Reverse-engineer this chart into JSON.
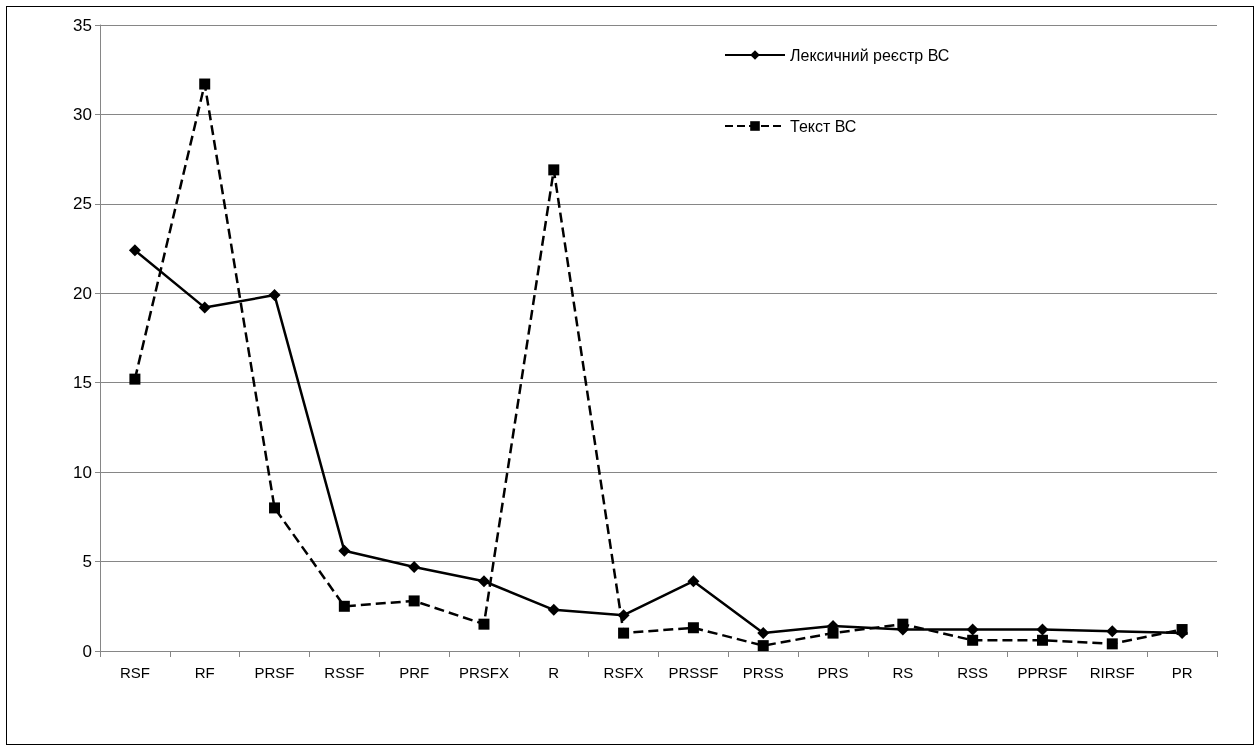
{
  "chart_data": {
    "type": "line",
    "categories": [
      "RSF",
      "RF",
      "PRSF",
      "RSSF",
      "PRF",
      "PRSFX",
      "R",
      "RSFX",
      "PRSSF",
      "PRSS",
      "PRS",
      "RS",
      "RSS",
      "PPRSF",
      "RIRSF",
      "PR"
    ],
    "series": [
      {
        "name": "Лексичний реєстр ВС",
        "color": "#000000",
        "marker": "diamond",
        "line_style": "solid",
        "values": [
          22.4,
          19.2,
          19.9,
          5.6,
          4.7,
          3.9,
          2.3,
          2.0,
          3.9,
          1.0,
          1.4,
          1.2,
          1.2,
          1.2,
          1.1,
          1.0
        ]
      },
      {
        "name": "Текст ВС",
        "color": "#000000",
        "marker": "square",
        "line_style": "dashed",
        "values": [
          15.2,
          31.7,
          8.0,
          2.5,
          2.8,
          1.5,
          26.9,
          1.0,
          1.3,
          0.3,
          1.0,
          1.5,
          0.6,
          0.6,
          0.4,
          1.2
        ]
      }
    ],
    "ylim": [
      0,
      35
    ],
    "yticks": [
      0,
      5,
      10,
      15,
      20,
      25,
      30,
      35
    ],
    "grid": "y",
    "legend": "top right"
  }
}
